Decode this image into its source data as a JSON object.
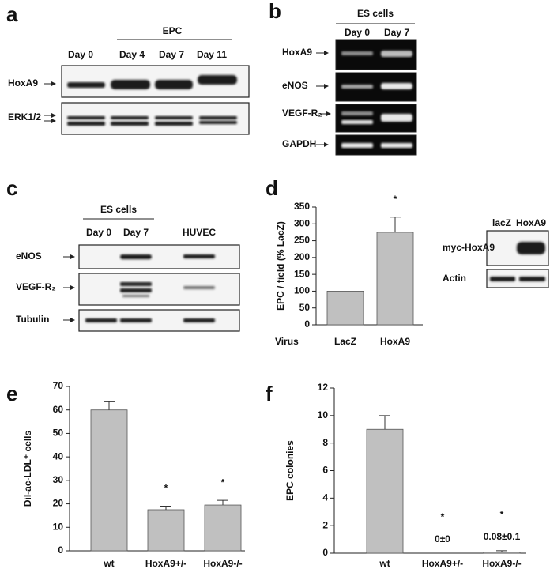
{
  "panel_a": {
    "letter": "a",
    "group": "EPC",
    "lanes": [
      "Day 0",
      "Day 4",
      "Day 7",
      "Day 11"
    ],
    "rows": [
      "HoxA9",
      "ERK1/2"
    ]
  },
  "panel_b": {
    "letter": "b",
    "group": "ES cells",
    "lanes": [
      "Day 0",
      "Day 7"
    ],
    "rows": [
      "HoxA9",
      "eNOS",
      "VEGF-R₂",
      "GAPDH"
    ]
  },
  "panel_c": {
    "letter": "c",
    "group": "ES cells",
    "lanes": [
      "Day 0",
      "Day 7",
      "HUVEC"
    ],
    "rows": [
      "eNOS",
      "VEGF-R₂",
      "Tubulin"
    ]
  },
  "panel_d": {
    "letter": "d",
    "x_label": "Virus",
    "inset": {
      "lanes": [
        "lacZ",
        "HoxA9"
      ],
      "rows": [
        "myc-HoxA9",
        "Actin"
      ]
    }
  },
  "panel_e": {
    "letter": "e"
  },
  "panel_f": {
    "letter": "f"
  },
  "chart_data": [
    {
      "type": "bar",
      "y_label": "EPC / field (% LacZ)",
      "categories": [
        "LacZ",
        "HoxA9"
      ],
      "values": [
        100,
        275
      ],
      "errors": [
        0,
        45
      ],
      "stars": [
        null,
        "*"
      ],
      "color": "#c0c0c0",
      "ylim": [
        0,
        350
      ],
      "yticks": [
        0,
        50,
        100,
        150,
        200,
        250,
        300,
        350
      ]
    },
    {
      "type": "bar",
      "y_label": "DiI-ac-LDL⁺ cells",
      "categories": [
        "wt",
        "HoxA9+/-",
        "HoxA9-/-"
      ],
      "values": [
        60,
        17.5,
        19.5
      ],
      "errors": [
        3.5,
        1.5,
        2
      ],
      "stars": [
        null,
        "*",
        "*"
      ],
      "color": "#c0c0c0",
      "ylim": [
        0,
        70
      ],
      "yticks": [
        0,
        10,
        20,
        30,
        40,
        50,
        60,
        70
      ]
    },
    {
      "type": "bar",
      "y_label": "EPC colonies",
      "categories": [
        "wt",
        "HoxA9+/-",
        "HoxA9-/-"
      ],
      "values": [
        9,
        0,
        0.08
      ],
      "errors": [
        1,
        0,
        0.1
      ],
      "value_labels": [
        null,
        "0±0",
        "0.08±0.1"
      ],
      "stars": [
        null,
        "*",
        "*"
      ],
      "color": "#c0c0c0",
      "ylim": [
        0,
        12
      ],
      "yticks": [
        0,
        2,
        4,
        6,
        8,
        10,
        12
      ]
    }
  ]
}
